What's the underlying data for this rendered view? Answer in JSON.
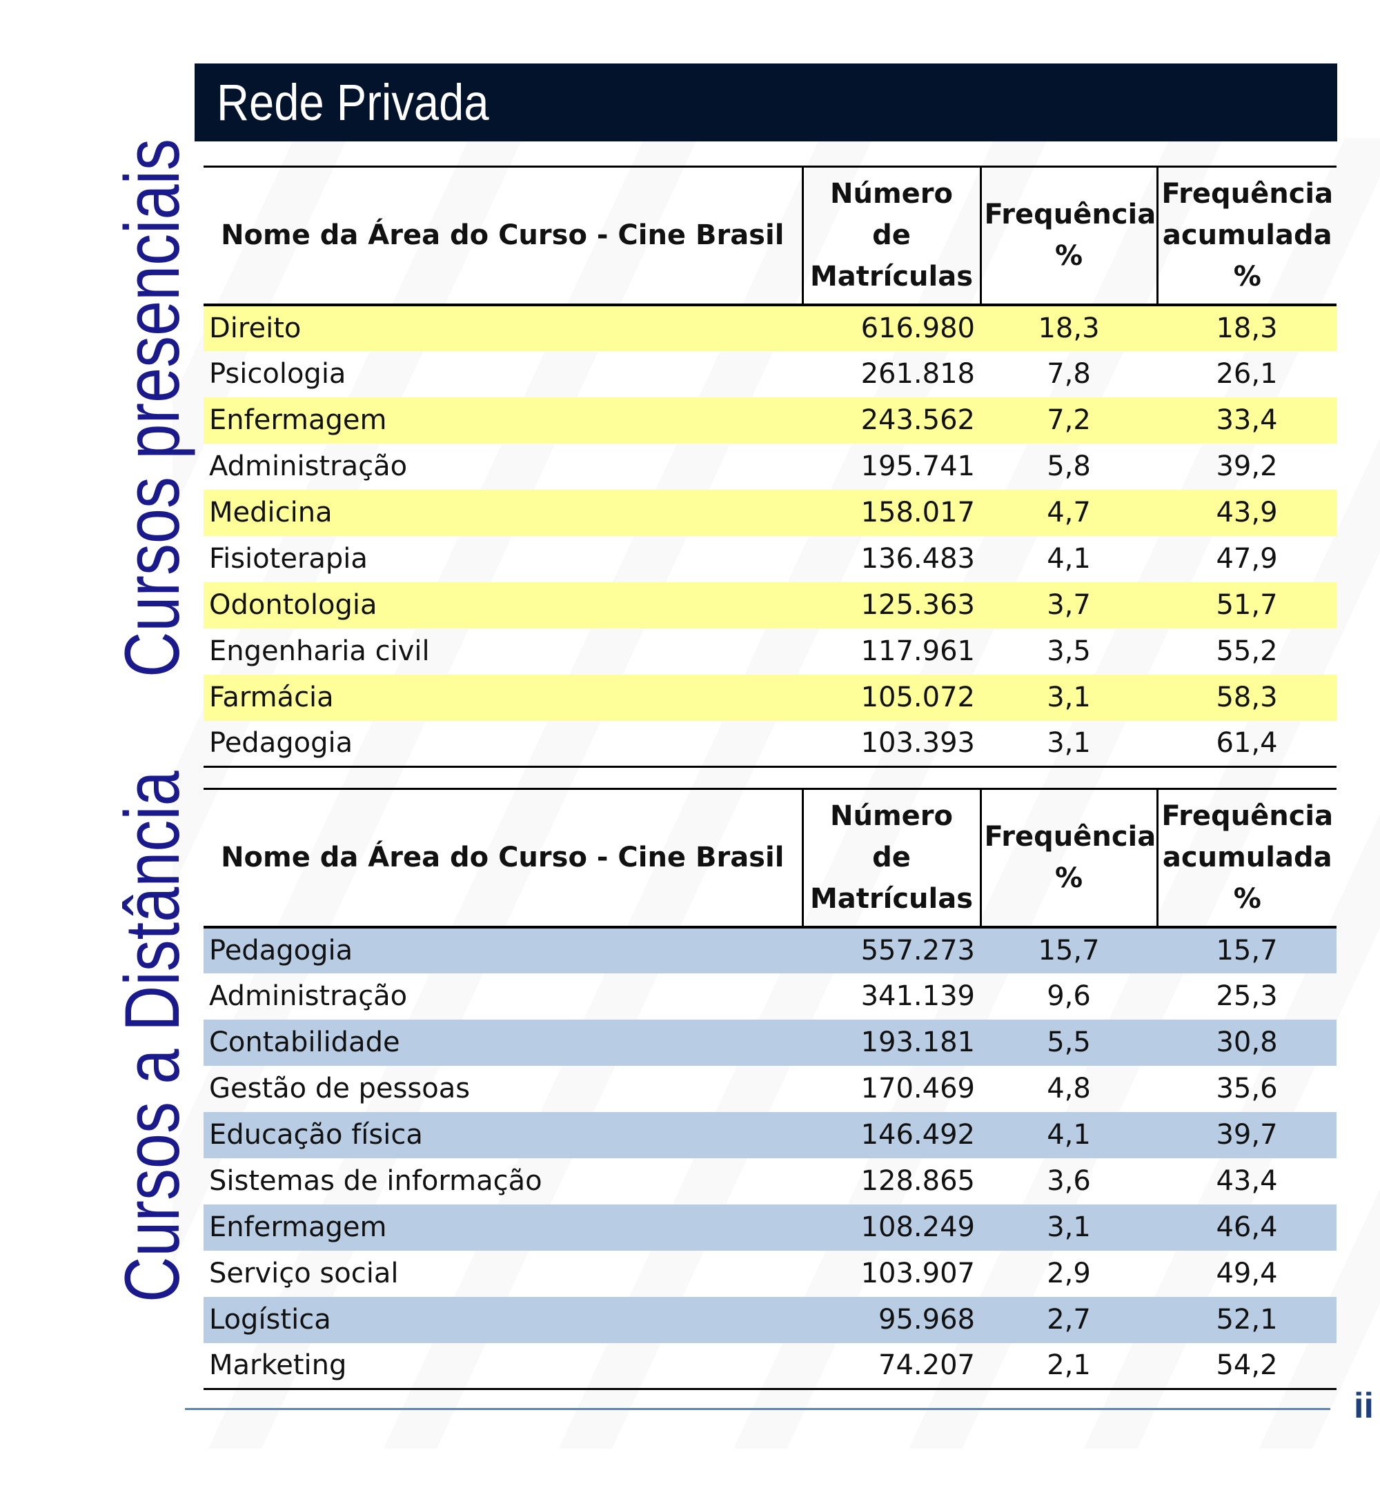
{
  "header": {
    "title": "Rede Privada"
  },
  "side_labels": {
    "presenciais": "Cursos presenciais",
    "distancia": "Cursos a Distância"
  },
  "columns": {
    "name": "Nome da Área do Curso - Cine Brasil",
    "enrollments_line1": "Número de",
    "enrollments_line2": "Matrículas",
    "freq_line1": "Frequência",
    "freq_line2": "%",
    "cum_line1": "Frequência",
    "cum_line2": "acumulada",
    "cum_line3": "%"
  },
  "presenciais": [
    {
      "name": "Direito",
      "matriculas": "616.980",
      "freq": "18,3",
      "cum": "18,3"
    },
    {
      "name": "Psicologia",
      "matriculas": "261.818",
      "freq": "7,8",
      "cum": "26,1"
    },
    {
      "name": "Enfermagem",
      "matriculas": "243.562",
      "freq": "7,2",
      "cum": "33,4"
    },
    {
      "name": "Administração",
      "matriculas": "195.741",
      "freq": "5,8",
      "cum": "39,2"
    },
    {
      "name": "Medicina",
      "matriculas": "158.017",
      "freq": "4,7",
      "cum": "43,9"
    },
    {
      "name": "Fisioterapia",
      "matriculas": "136.483",
      "freq": "4,1",
      "cum": "47,9"
    },
    {
      "name": "Odontologia",
      "matriculas": "125.363",
      "freq": "3,7",
      "cum": "51,7"
    },
    {
      "name": "Engenharia civil",
      "matriculas": "117.961",
      "freq": "3,5",
      "cum": "55,2"
    },
    {
      "name": "Farmácia",
      "matriculas": "105.072",
      "freq": "3,1",
      "cum": "58,3"
    },
    {
      "name": "Pedagogia",
      "matriculas": "103.393",
      "freq": "3,1",
      "cum": "61,4"
    }
  ],
  "distancia": [
    {
      "name": "Pedagogia",
      "matriculas": "557.273",
      "freq": "15,7",
      "cum": "15,7"
    },
    {
      "name": "Administração",
      "matriculas": "341.139",
      "freq": "9,6",
      "cum": "25,3"
    },
    {
      "name": "Contabilidade",
      "matriculas": "193.181",
      "freq": "5,5",
      "cum": "30,8"
    },
    {
      "name": "Gestão de pessoas",
      "matriculas": "170.469",
      "freq": "4,8",
      "cum": "35,6"
    },
    {
      "name": "Educação física",
      "matriculas": "146.492",
      "freq": "4,1",
      "cum": "39,7"
    },
    {
      "name": "Sistemas de informação",
      "matriculas": "128.865",
      "freq": "3,6",
      "cum": "43,4"
    },
    {
      "name": "Enfermagem",
      "matriculas": "108.249",
      "freq": "3,1",
      "cum": "46,4"
    },
    {
      "name": "Serviço social",
      "matriculas": "103.907",
      "freq": "2,9",
      "cum": "49,4"
    },
    {
      "name": "Logística",
      "matriculas": "95.968",
      "freq": "2,7",
      "cum": "52,1"
    },
    {
      "name": "Marketing",
      "matriculas": "74.207",
      "freq": "2,1",
      "cum": "54,2"
    }
  ],
  "footer": {
    "corner_mark": "ii"
  },
  "colors": {
    "header_band": "#03132b",
    "side_title": "#1a1a8c",
    "presenciais_stripe": "#ffff99",
    "distancia_stripe": "#b8cce4"
  }
}
